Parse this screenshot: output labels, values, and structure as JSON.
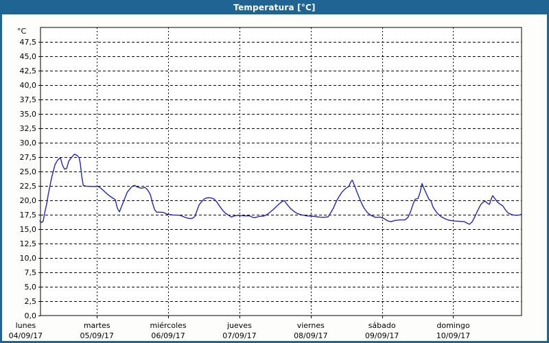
{
  "window": {
    "title": "Temperatura [°C]",
    "titlebar_color": "#1f6492",
    "border_color": "#1f6492",
    "background_color": "#fdfefc"
  },
  "chart_data": {
    "type": "line",
    "title": "Temperatura [°C]",
    "ylabel": "°C",
    "xlabel": "",
    "ylim": [
      0,
      50
    ],
    "grid": true,
    "legend": "none",
    "plot_background": "#ffffff",
    "grid_color": "#000000",
    "y_axis": {
      "unit_label": "°C",
      "min": 0,
      "max": 50,
      "tick_step": 2.5,
      "ticks": [
        {
          "value": 47.5,
          "label": "47,5"
        },
        {
          "value": 45.0,
          "label": "45,0"
        },
        {
          "value": 42.5,
          "label": "42,5"
        },
        {
          "value": 40.0,
          "label": "40,0"
        },
        {
          "value": 37.5,
          "label": "37,5"
        },
        {
          "value": 35.0,
          "label": "35,0"
        },
        {
          "value": 32.5,
          "label": "32,5"
        },
        {
          "value": 30.0,
          "label": "30,0"
        },
        {
          "value": 27.5,
          "label": "27,5"
        },
        {
          "value": 25.0,
          "label": "25,0"
        },
        {
          "value": 22.5,
          "label": "22,5"
        },
        {
          "value": 20.0,
          "label": "20,0"
        },
        {
          "value": 17.5,
          "label": "17,5"
        },
        {
          "value": 15.0,
          "label": "15,0"
        },
        {
          "value": 12.5,
          "label": "12,5"
        },
        {
          "value": 10.0,
          "label": "10,0"
        },
        {
          "value": 7.5,
          "label": "7,5"
        },
        {
          "value": 5.0,
          "label": "5,0"
        },
        {
          "value": 2.5,
          "label": "2,5"
        },
        {
          "value": 0.0,
          "label": "0,0"
        }
      ]
    },
    "x_axis": {
      "hour_min": 5,
      "hour_max": 167,
      "day_ticks": [
        {
          "name": "lunes",
          "date": "04/09/17",
          "hour": 0
        },
        {
          "name": "martes",
          "date": "05/09/17",
          "hour": 24
        },
        {
          "name": "miércoles",
          "date": "06/09/17",
          "hour": 48
        },
        {
          "name": "jueves",
          "date": "07/09/17",
          "hour": 72
        },
        {
          "name": "viernes",
          "date": "08/09/17",
          "hour": 96
        },
        {
          "name": "sábado",
          "date": "09/09/17",
          "hour": 120
        },
        {
          "name": "domingo",
          "date": "10/09/17",
          "hour": 144
        }
      ]
    },
    "series": [
      {
        "name": "Temperatura",
        "color": "#2222bd",
        "points": [
          [
            4.8,
            16.4
          ],
          [
            5.3,
            16.15
          ],
          [
            5.8,
            16.3
          ],
          [
            6.0,
            16.6
          ],
          [
            6.4,
            17.8
          ],
          [
            7.1,
            19.4
          ],
          [
            7.6,
            21.0
          ],
          [
            8.7,
            23.8
          ],
          [
            9.9,
            26.2
          ],
          [
            10.8,
            27.0
          ],
          [
            11.7,
            27.4
          ],
          [
            12.4,
            26.1
          ],
          [
            13.1,
            25.4
          ],
          [
            13.8,
            25.5
          ],
          [
            14.5,
            26.8
          ],
          [
            15.4,
            27.4
          ],
          [
            16.4,
            28.0
          ],
          [
            17.3,
            27.8
          ],
          [
            18.0,
            27.4
          ],
          [
            18.4,
            26.4
          ],
          [
            18.9,
            24.2
          ],
          [
            19.4,
            22.6
          ],
          [
            20.3,
            22.45
          ],
          [
            22.0,
            22.4
          ],
          [
            24.4,
            22.4
          ],
          [
            25.6,
            22.0
          ],
          [
            27.2,
            21.2
          ],
          [
            28.4,
            20.7
          ],
          [
            29.5,
            20.35
          ],
          [
            30.2,
            20.1
          ],
          [
            30.9,
            18.6
          ],
          [
            31.6,
            18.0
          ],
          [
            32.5,
            19.2
          ],
          [
            34.2,
            21.4
          ],
          [
            35.8,
            22.4
          ],
          [
            36.7,
            22.6
          ],
          [
            37.6,
            22.3
          ],
          [
            39.0,
            22.1
          ],
          [
            40.2,
            22.25
          ],
          [
            41.1,
            21.8
          ],
          [
            42.0,
            21.0
          ],
          [
            42.7,
            19.6
          ],
          [
            43.4,
            18.4
          ],
          [
            44.1,
            17.95
          ],
          [
            46.4,
            17.9
          ],
          [
            47.6,
            17.6
          ],
          [
            48.3,
            17.55
          ],
          [
            49.6,
            17.45
          ],
          [
            52.0,
            17.4
          ],
          [
            52.9,
            17.2
          ],
          [
            54.0,
            17.0
          ],
          [
            55.0,
            16.85
          ],
          [
            56.1,
            16.85
          ],
          [
            57.0,
            17.2
          ],
          [
            57.7,
            18.2
          ],
          [
            58.4,
            19.2
          ],
          [
            59.3,
            19.8
          ],
          [
            60.3,
            20.3
          ],
          [
            61.4,
            20.45
          ],
          [
            62.6,
            20.4
          ],
          [
            63.5,
            20.2
          ],
          [
            64.4,
            19.7
          ],
          [
            65.3,
            19.0
          ],
          [
            66.3,
            18.3
          ],
          [
            67.2,
            17.8
          ],
          [
            68.1,
            17.5
          ],
          [
            69.3,
            17.1
          ],
          [
            70.4,
            17.3
          ],
          [
            71.6,
            17.4
          ],
          [
            72.5,
            17.35
          ],
          [
            74.1,
            17.3
          ],
          [
            75.5,
            17.3
          ],
          [
            76.4,
            17.05
          ],
          [
            77.4,
            17.0
          ],
          [
            78.5,
            17.2
          ],
          [
            80.1,
            17.25
          ],
          [
            81.5,
            17.6
          ],
          [
            82.7,
            18.1
          ],
          [
            83.8,
            18.6
          ],
          [
            85.2,
            19.3
          ],
          [
            86.4,
            19.8
          ],
          [
            87.1,
            19.95
          ],
          [
            88.0,
            19.3
          ],
          [
            89.2,
            18.6
          ],
          [
            90.3,
            18.1
          ],
          [
            91.5,
            17.7
          ],
          [
            93.1,
            17.45
          ],
          [
            94.7,
            17.3
          ],
          [
            95.9,
            17.25
          ],
          [
            97.3,
            17.2
          ],
          [
            98.9,
            17.1
          ],
          [
            100.5,
            17.05
          ],
          [
            101.9,
            17.15
          ],
          [
            102.8,
            17.9
          ],
          [
            103.7,
            18.7
          ],
          [
            104.6,
            19.8
          ],
          [
            105.6,
            20.7
          ],
          [
            106.5,
            21.4
          ],
          [
            107.6,
            22.0
          ],
          [
            108.8,
            22.4
          ],
          [
            109.5,
            23.2
          ],
          [
            110.0,
            23.5
          ],
          [
            110.9,
            22.4
          ],
          [
            111.6,
            21.4
          ],
          [
            112.3,
            20.5
          ],
          [
            113.2,
            19.4
          ],
          [
            113.9,
            18.7
          ],
          [
            115.0,
            17.9
          ],
          [
            116.2,
            17.4
          ],
          [
            117.8,
            17.05
          ],
          [
            119.2,
            17.1
          ],
          [
            119.9,
            17.0
          ],
          [
            120.8,
            16.8
          ],
          [
            122.0,
            16.4
          ],
          [
            123.1,
            16.3
          ],
          [
            124.3,
            16.5
          ],
          [
            125.9,
            16.6
          ],
          [
            127.7,
            16.6
          ],
          [
            128.7,
            17.0
          ],
          [
            129.6,
            18.0
          ],
          [
            130.5,
            19.4
          ],
          [
            131.2,
            20.2
          ],
          [
            132.1,
            20.3
          ],
          [
            132.8,
            21.3
          ],
          [
            133.5,
            22.9
          ],
          [
            134.2,
            22.0
          ],
          [
            134.9,
            21.2
          ],
          [
            135.8,
            20.2
          ],
          [
            136.5,
            19.9
          ],
          [
            137.2,
            18.8
          ],
          [
            138.4,
            17.9
          ],
          [
            139.8,
            17.2
          ],
          [
            141.2,
            16.8
          ],
          [
            142.5,
            16.55
          ],
          [
            143.2,
            16.5
          ],
          [
            144.6,
            16.4
          ],
          [
            146.3,
            16.35
          ],
          [
            147.7,
            16.3
          ],
          [
            148.8,
            16.0
          ],
          [
            149.5,
            15.85
          ],
          [
            150.4,
            16.3
          ],
          [
            151.3,
            17.2
          ],
          [
            152.3,
            18.3
          ],
          [
            153.2,
            19.2
          ],
          [
            154.1,
            19.7
          ],
          [
            154.8,
            19.85
          ],
          [
            155.5,
            19.5
          ],
          [
            156.2,
            19.3
          ],
          [
            156.9,
            20.4
          ],
          [
            157.3,
            20.8
          ],
          [
            158.0,
            20.3
          ],
          [
            158.7,
            19.8
          ],
          [
            159.7,
            19.35
          ],
          [
            160.6,
            19.1
          ],
          [
            161.5,
            18.4
          ],
          [
            162.4,
            17.85
          ],
          [
            163.3,
            17.6
          ],
          [
            164.2,
            17.45
          ],
          [
            165.4,
            17.4
          ],
          [
            166.3,
            17.45
          ],
          [
            167.0,
            17.6
          ]
        ]
      }
    ]
  }
}
